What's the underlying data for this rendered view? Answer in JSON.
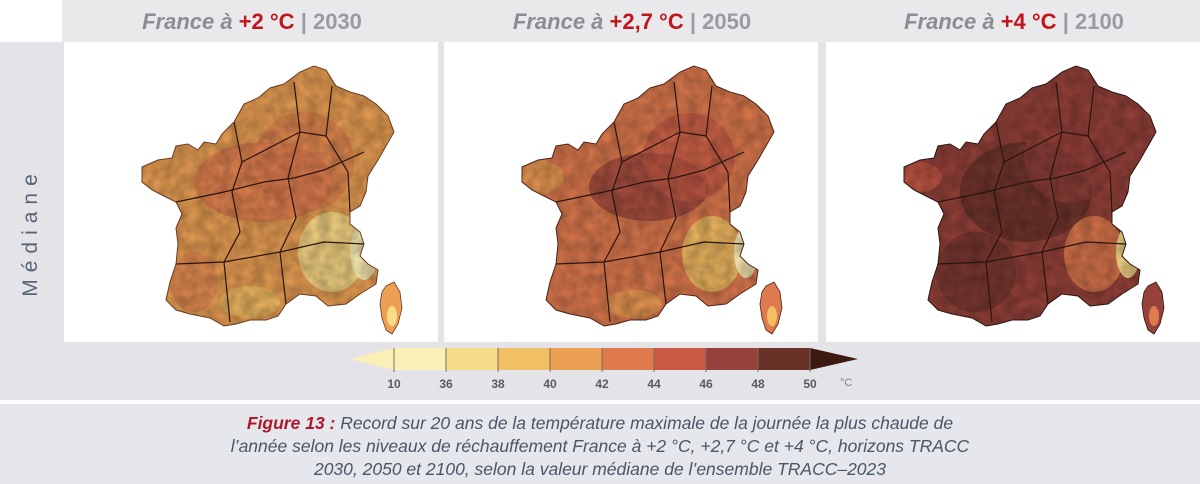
{
  "panels": [
    {
      "country": "France à ",
      "warming": "+2 °C",
      "sep": " | ",
      "year": "2030"
    },
    {
      "country": "France à ",
      "warming": "+2,7 °C",
      "sep": " | ",
      "year": "2050"
    },
    {
      "country": "France à ",
      "warming": "+4 °C",
      "sep": " | ",
      "year": "2100"
    }
  ],
  "row_label": "Médiane",
  "legend": {
    "ticks": [
      "10",
      "36",
      "38",
      "40",
      "42",
      "44",
      "46",
      "48",
      "50"
    ],
    "unit": "°C",
    "colors": [
      "#fbf1b7",
      "#f7dc8a",
      "#f2c064",
      "#eba054",
      "#de7a4e",
      "#c85a46",
      "#96423a",
      "#683229",
      "#3d1a11"
    ]
  },
  "caption": {
    "figure_label": "Figure 13 :",
    "line1": " Record sur 20 ans de la température maximale de la journée la plus chaude de",
    "line2": "l’année selon les niveaux de réchauffement France à +2 °C, +2,7 °C et +4 °C, horizons TRACC",
    "line3": "2030, 2050 et 2100, selon la valeur médiane de l’ensemble TRACC–2023"
  },
  "colors": {
    "title_warming": "#c0151b",
    "caption_label": "#b0192b",
    "border_lines": "#2a1410"
  }
}
